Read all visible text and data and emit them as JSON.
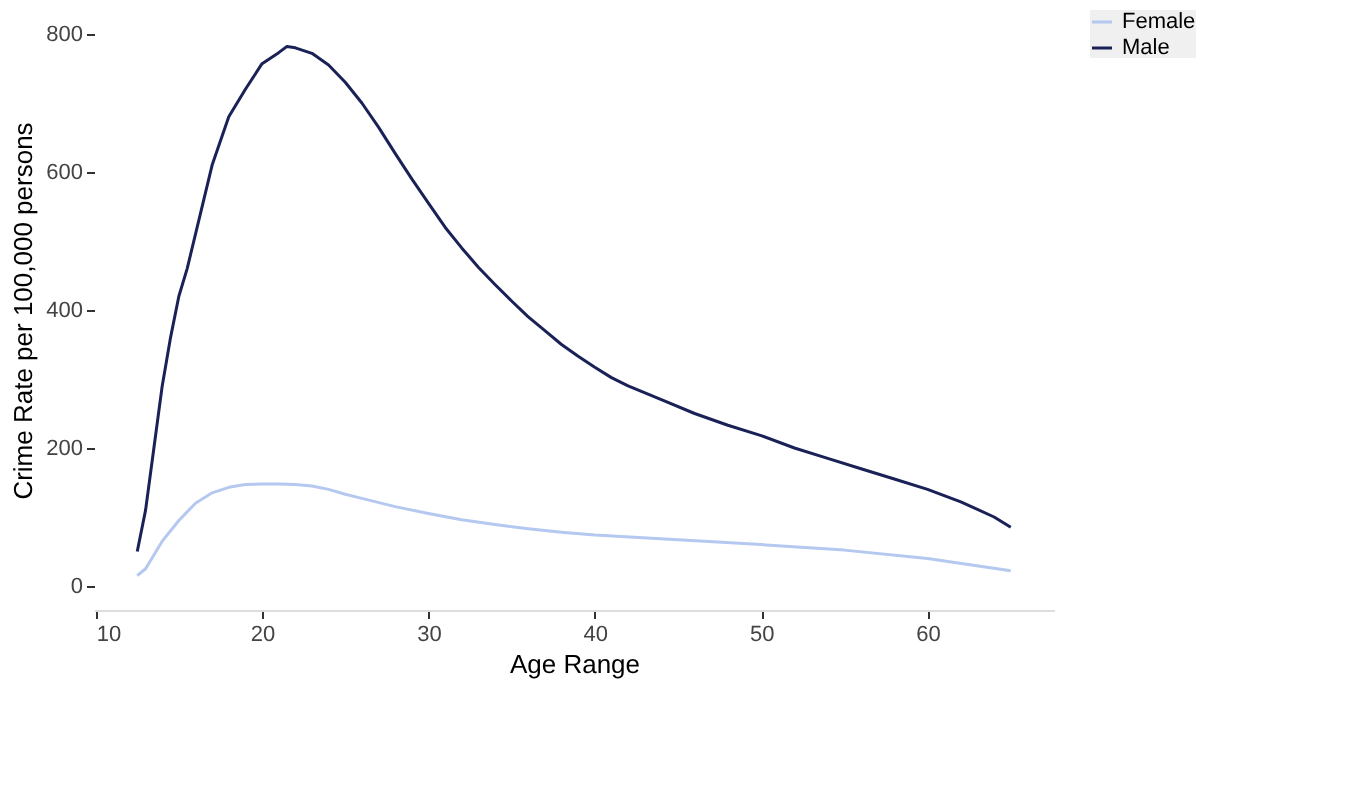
{
  "chart_data": {
    "type": "line",
    "xlabel": "Age Range",
    "ylabel": "Crime Rate per 100,000 persons",
    "xlim": [
      9.9,
      67.6
    ],
    "ylim": [
      0,
      800
    ],
    "xticks": [
      10,
      20,
      30,
      40,
      50,
      60
    ],
    "yticks": [
      0,
      200,
      400,
      600,
      800
    ],
    "grid": false,
    "legend": "right",
    "marker": "none",
    "line_style": "solid",
    "series": [
      {
        "name": "Female",
        "color": "#b4c8f0",
        "x": [
          12.5,
          13,
          13.5,
          14,
          15,
          16,
          17,
          18,
          19,
          20,
          21,
          22,
          23,
          24,
          25,
          26,
          28,
          30,
          32,
          34,
          36,
          38,
          40,
          45,
          50,
          55,
          60,
          65
        ],
        "values": [
          15,
          25,
          45,
          65,
          95,
          120,
          135,
          143,
          147,
          148,
          148,
          147,
          145,
          140,
          133,
          127,
          115,
          105,
          96,
          89,
          83,
          78,
          74,
          67,
          60,
          52,
          40,
          22
        ]
      },
      {
        "name": "Male",
        "color": "#1a2157",
        "x": [
          12.5,
          13,
          13.5,
          14,
          14.5,
          15,
          15.5,
          16,
          16.5,
          17,
          18,
          19,
          20,
          21,
          21.5,
          22,
          23,
          24,
          25,
          26,
          27,
          28,
          29,
          30,
          31,
          32,
          33,
          34,
          35,
          36,
          37,
          38,
          39,
          40,
          41,
          42,
          44,
          46,
          48,
          50,
          52,
          54,
          56,
          58,
          60,
          62,
          64,
          65
        ],
        "values": [
          50,
          110,
          200,
          290,
          360,
          420,
          460,
          510,
          560,
          610,
          680,
          720,
          757,
          773,
          782,
          780,
          772,
          755,
          730,
          700,
          665,
          627,
          590,
          555,
          520,
          490,
          462,
          437,
          413,
          390,
          370,
          350,
          333,
          317,
          302,
          290,
          270,
          250,
          233,
          218,
          200,
          185,
          170,
          155,
          140,
          122,
          100,
          85
        ]
      }
    ]
  }
}
